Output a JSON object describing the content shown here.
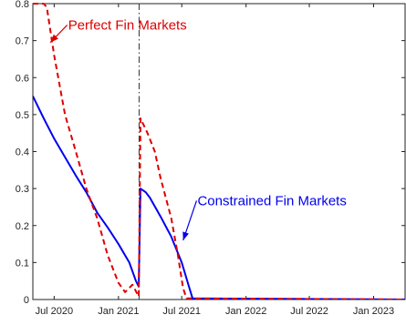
{
  "chart_data": {
    "type": "line",
    "title": "",
    "xlabel": "",
    "ylabel": "",
    "xlim": [
      "2020-05-01",
      "2023-04-01"
    ],
    "ylim": [
      0,
      0.8
    ],
    "grid": false,
    "yticks": [
      {
        "value": 0,
        "label": "0"
      },
      {
        "value": 0.1,
        "label": "0.1"
      },
      {
        "value": 0.2,
        "label": "0.2"
      },
      {
        "value": 0.3,
        "label": "0.3"
      },
      {
        "value": 0.4,
        "label": "0.4"
      },
      {
        "value": 0.5,
        "label": "0.5"
      },
      {
        "value": 0.6,
        "label": "0.6"
      },
      {
        "value": 0.7,
        "label": "0.7"
      },
      {
        "value": 0.8,
        "label": "0.8"
      }
    ],
    "xticks": [
      {
        "date": "2020-07-01",
        "label": "Jul 2020"
      },
      {
        "date": "2021-01-01",
        "label": "Jan 2021"
      },
      {
        "date": "2021-07-01",
        "label": "Jul 2021"
      },
      {
        "date": "2022-01-01",
        "label": "Jan 2022"
      },
      {
        "date": "2022-07-01",
        "label": "Jul 2022"
      },
      {
        "date": "2023-01-01",
        "label": "Jan 2023"
      }
    ],
    "vline": {
      "date": "2021-03-01",
      "style": "dash-dot",
      "color": "#333333"
    },
    "series": [
      {
        "name": "",
        "color": "#0000ee",
        "style": "solid",
        "points": [
          [
            "2020-05-01",
            0.55
          ],
          [
            "2020-06-01",
            0.49
          ],
          [
            "2020-07-01",
            0.435
          ],
          [
            "2020-08-01",
            0.385
          ],
          [
            "2020-09-01",
            0.335
          ],
          [
            "2020-10-01",
            0.29
          ],
          [
            "2020-11-01",
            0.235
          ],
          [
            "2020-12-01",
            0.195
          ],
          [
            "2021-01-01",
            0.15
          ],
          [
            "2021-02-01",
            0.1
          ],
          [
            "2021-02-20",
            0.05
          ],
          [
            "2021-02-28",
            0.035
          ],
          [
            "2021-03-05",
            0.3
          ],
          [
            "2021-03-20",
            0.29
          ],
          [
            "2021-04-01",
            0.275
          ],
          [
            "2021-05-01",
            0.225
          ],
          [
            "2021-06-01",
            0.17
          ],
          [
            "2021-07-01",
            0.1
          ],
          [
            "2021-07-20",
            0.04
          ],
          [
            "2021-08-01",
            0.003
          ],
          [
            "2023-04-01",
            0
          ]
        ]
      },
      {
        "name": "",
        "color": "#dd0000",
        "style": "dashed",
        "points": [
          [
            "2020-05-01",
            0.8
          ],
          [
            "2020-06-01",
            0.8
          ],
          [
            "2020-06-10",
            0.79
          ],
          [
            "2020-07-01",
            0.66
          ],
          [
            "2020-08-01",
            0.5
          ],
          [
            "2020-09-01",
            0.4
          ],
          [
            "2020-10-01",
            0.3
          ],
          [
            "2020-11-01",
            0.22
          ],
          [
            "2020-12-01",
            0.12
          ],
          [
            "2021-01-01",
            0.045
          ],
          [
            "2021-01-20",
            0.02
          ],
          [
            "2021-02-10",
            0.04
          ],
          [
            "2021-02-28",
            0.008
          ],
          [
            "2021-03-05",
            0.49
          ],
          [
            "2021-03-25",
            0.45
          ],
          [
            "2021-04-15",
            0.4
          ],
          [
            "2021-05-01",
            0.33
          ],
          [
            "2021-06-01",
            0.22
          ],
          [
            "2021-06-20",
            0.12
          ],
          [
            "2021-07-05",
            0.03
          ],
          [
            "2021-07-15",
            0.003
          ],
          [
            "2023-04-01",
            0
          ]
        ]
      }
    ],
    "annotations": [
      {
        "text": "Perfect Fin Markets",
        "color": "#dd0000",
        "text_date": "2020-08-10",
        "text_value": 0.73,
        "arrow_to_date": "2020-06-20",
        "arrow_to_value": 0.695
      },
      {
        "text": "Constrained Fin Markets",
        "color": "#0000ee",
        "text_date": "2021-08-15",
        "text_value": 0.255,
        "arrow_to_date": "2021-07-05",
        "arrow_to_value": 0.16
      }
    ]
  }
}
